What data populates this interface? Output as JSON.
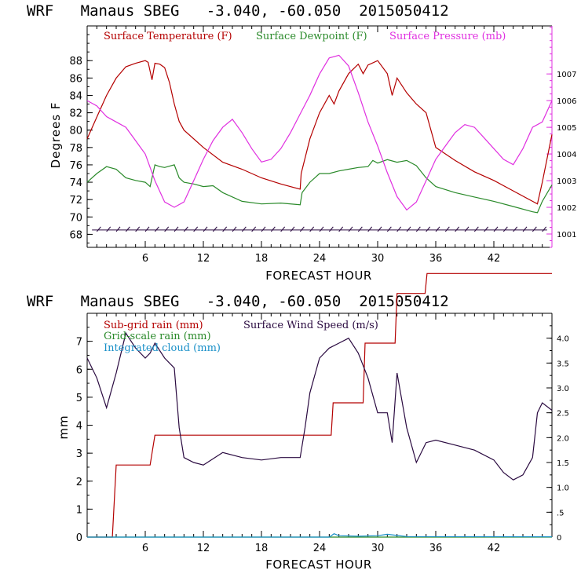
{
  "charts": [
    {
      "title": "WRF   Manaus SBEG   -3.040, -60.050  2015050412",
      "xlabel": "FORECAST HOUR",
      "ylabel": "Degrees F",
      "legend": [
        "Surface Temperature (F)",
        "Surface Dewpoint (F)",
        "Surface Pressure (mb)"
      ]
    },
    {
      "title": "WRF   Manaus SBEG   -3.040, -60.050  2015050412",
      "xlabel": "FORECAST HOUR",
      "ylabel": "mm",
      "legend": [
        "Sub-grid rain (mm)",
        "Surface Wind Speed (m/s)",
        "Grid-scale rain (mm)",
        "Integrated cloud (mm)"
      ]
    }
  ],
  "colors": {
    "temperature": "#b40000",
    "dewpoint": "#2a8a2a",
    "pressure": "#e030e0",
    "wind": "#2a0a40",
    "subgrid_rain": "#b40000",
    "grid_rain": "#2a8a2a",
    "cloud": "#1a90c8",
    "axis_right_top": "#e030e0"
  },
  "chart_data": [
    {
      "type": "line",
      "title": "WRF   Manaus SBEG   -3.040, -60.050  2015050412",
      "xlabel": "FORECAST HOUR",
      "ylabel": "Degrees F",
      "xlim": [
        0,
        48
      ],
      "ylim": [
        66.5,
        92
      ],
      "y2lim": [
        1000.5,
        1008.8
      ],
      "x_ticks": [
        "6",
        "12",
        "18",
        "24",
        "30",
        "36",
        "42"
      ],
      "y_ticks": [
        "68",
        "70",
        "72",
        "74",
        "76",
        "78",
        "80",
        "82",
        "84",
        "86",
        "88"
      ],
      "y2_ticks": [
        "1001",
        "1002",
        "1003",
        "1004",
        "1005",
        "1006",
        "1007"
      ],
      "series": [
        {
          "name": "Surface Temperature (F)",
          "axis": "left",
          "x": [
            0,
            1,
            2,
            3,
            4,
            5,
            6,
            6.3,
            6.7,
            7,
            7.5,
            8,
            8.5,
            9,
            9.5,
            10,
            12,
            14,
            16,
            18,
            20,
            22,
            22.1,
            23,
            24,
            25,
            25.5,
            26,
            27,
            28,
            28.5,
            29,
            30,
            31,
            31.5,
            32,
            33,
            34,
            35,
            36,
            38,
            40,
            42,
            44,
            46,
            46.5,
            47,
            48
          ],
          "y": [
            79,
            81.5,
            84,
            86,
            87.3,
            87.7,
            88,
            87.8,
            85.8,
            87.7,
            87.6,
            87.2,
            85.5,
            83,
            81,
            80,
            78,
            76.3,
            75.5,
            74.5,
            73.8,
            73.2,
            75,
            79,
            82,
            84,
            83,
            84.5,
            86.5,
            87.6,
            86.5,
            87.5,
            88,
            86.5,
            84,
            86,
            84.3,
            83,
            82,
            78,
            76.5,
            75.2,
            74.2,
            73,
            71.8,
            71.5,
            74,
            79.5
          ]
        },
        {
          "name": "Surface Dewpoint (F)",
          "axis": "left",
          "x": [
            0,
            1,
            2,
            3,
            4,
            5,
            6,
            6.5,
            7,
            7.5,
            8,
            9,
            9.5,
            10,
            11,
            12,
            13,
            14,
            16,
            18,
            20,
            22,
            22.2,
            23,
            24,
            25,
            26,
            27,
            28,
            29,
            29.5,
            30,
            31,
            32,
            33,
            34,
            35,
            36,
            38,
            40,
            42,
            44,
            46,
            46.5,
            47,
            48
          ],
          "y": [
            74,
            75,
            75.8,
            75.5,
            74.5,
            74.2,
            74,
            73.5,
            76,
            75.8,
            75.7,
            76,
            74.5,
            74,
            73.8,
            73.5,
            73.6,
            72.8,
            71.8,
            71.5,
            71.6,
            71.4,
            72.8,
            74,
            75,
            75,
            75.3,
            75.5,
            75.7,
            75.8,
            76.5,
            76.2,
            76.6,
            76.3,
            76.5,
            75.9,
            74.5,
            73.5,
            72.8,
            72.3,
            71.8,
            71.2,
            70.6,
            70.5,
            71.8,
            73.7
          ]
        },
        {
          "name": "Surface Pressure (mb)",
          "axis": "right",
          "x": [
            0,
            1,
            2,
            3,
            4,
            5,
            6,
            7,
            8,
            9,
            10,
            11,
            12,
            13,
            14,
            15,
            16,
            17,
            18,
            19,
            20,
            21,
            22,
            23,
            24,
            25,
            26,
            27,
            28,
            29,
            30,
            31,
            32,
            33,
            34,
            35,
            36,
            37,
            38,
            39,
            40,
            41,
            42,
            43,
            44,
            45,
            46,
            47,
            48
          ],
          "y": [
            1006,
            1005.8,
            1005.4,
            1005.2,
            1005,
            1004.5,
            1004,
            1003,
            1002.2,
            1002,
            1002.2,
            1003,
            1003.8,
            1004.5,
            1005,
            1005.3,
            1004.8,
            1004.2,
            1003.7,
            1003.8,
            1004.2,
            1004.8,
            1005.5,
            1006.2,
            1007,
            1007.6,
            1007.7,
            1007.3,
            1006.3,
            1005.2,
            1004.3,
            1003.3,
            1002.4,
            1001.9,
            1002.2,
            1003,
            1003.8,
            1004.3,
            1004.8,
            1005.1,
            1005,
            1004.6,
            1004.2,
            1003.8,
            1003.6,
            1004.2,
            1005,
            1005.2,
            1006
          ]
        }
      ]
    },
    {
      "type": "line",
      "title": "WRF   Manaus SBEG   -3.040, -60.050  2015050412",
      "xlabel": "FORECAST HOUR",
      "ylabel": "mm",
      "xlim": [
        0,
        48
      ],
      "ylim": [
        0,
        8
      ],
      "y2lim": [
        0,
        4.5
      ],
      "x_ticks": [
        "6",
        "12",
        "18",
        "24",
        "30",
        "36",
        "42"
      ],
      "y_ticks": [
        "0",
        "1",
        "2",
        "3",
        "4",
        "5",
        "6",
        "7"
      ],
      "y2_ticks": [
        "0",
        ".5",
        "1.0",
        "1.5",
        "2.0",
        "2.5",
        "3.0",
        "3.5",
        "4.0"
      ],
      "series": [
        {
          "name": "Sub-grid rain (mm)",
          "axis": "left",
          "x": [
            0,
            2.6,
            3,
            6.5,
            7,
            25.2,
            25.4,
            28.5,
            28.7,
            31.8,
            32,
            34.9,
            35.1,
            48
          ],
          "y": [
            0,
            0,
            1.45,
            1.45,
            2.05,
            2.05,
            2.7,
            2.7,
            3.9,
            3.9,
            4.9,
            4.9,
            5.3,
            5.3
          ],
          "y_axis_note": "values on right axis scale"
        },
        {
          "name": "Surface Wind Speed (m/s)",
          "axis": "right",
          "x": [
            0,
            1,
            2,
            3,
            4,
            5,
            6,
            6.5,
            7,
            8,
            9,
            9.5,
            10,
            11,
            12,
            14,
            16,
            18,
            20,
            22,
            22.5,
            23,
            24,
            25,
            26,
            27,
            28,
            29,
            30,
            31,
            31.5,
            32,
            33,
            34,
            35,
            36,
            38,
            40,
            42,
            43,
            44,
            45,
            46,
            46.5,
            47,
            48
          ],
          "y": [
            3.6,
            3.2,
            2.6,
            3.3,
            4.1,
            3.8,
            3.6,
            3.7,
            3.9,
            3.6,
            3.4,
            2.2,
            1.6,
            1.5,
            1.45,
            1.7,
            1.6,
            1.55,
            1.6,
            1.6,
            2.2,
            2.9,
            3.6,
            3.8,
            3.9,
            4.0,
            3.7,
            3.2,
            2.5,
            2.5,
            1.9,
            3.3,
            2.2,
            1.5,
            1.9,
            1.95,
            1.85,
            1.75,
            1.55,
            1.3,
            1.15,
            1.25,
            1.6,
            2.5,
            2.7,
            2.55
          ]
        },
        {
          "name": "Grid-scale rain (mm)",
          "axis": "left",
          "x": [
            0,
            48
          ],
          "y": [
            0,
            0
          ]
        },
        {
          "name": "Integrated cloud (mm)",
          "axis": "left",
          "x": [
            0,
            25,
            25.5,
            26,
            28,
            30,
            31,
            32,
            33,
            48
          ],
          "y": [
            0,
            0,
            0.12,
            0.05,
            0.03,
            0.05,
            0.1,
            0.06,
            0.02,
            0.01
          ]
        }
      ]
    }
  ]
}
